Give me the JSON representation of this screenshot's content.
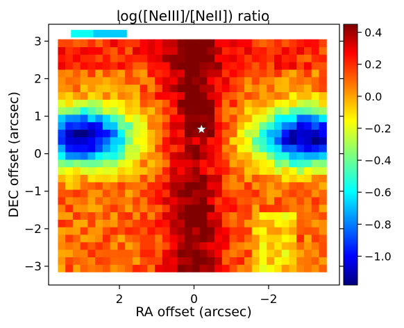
{
  "chart_data": {
    "type": "heatmap",
    "title": "log([NeIII]/[NeII]) ratio",
    "xlabel": "RA offset (arcsec)",
    "ylabel": "DEC offset (arcsec)",
    "xlim": [
      3.9,
      -3.9
    ],
    "ylim": [
      -3.5,
      3.45
    ],
    "x_ticks": [
      2,
      0,
      -2
    ],
    "x_tick_labels": [
      "2",
      "0",
      "−2"
    ],
    "y_ticks": [
      -3,
      -2,
      -1,
      0,
      1,
      2,
      3
    ],
    "y_tick_labels": [
      "−3",
      "−2",
      "−1",
      "0",
      "1",
      "2",
      "3"
    ],
    "colorbar": {
      "colormap": "jet",
      "vmin": -1.18,
      "vmax": 0.45,
      "ticks": [
        0.4,
        0.2,
        0.0,
        -0.2,
        -0.4,
        -0.6,
        -0.8,
        -1.0
      ],
      "tick_labels": [
        "0.4",
        "0.2",
        "0.0",
        "−0.2",
        "−0.4",
        "−0.6",
        "−0.8",
        "−1.0"
      ]
    },
    "marker": {
      "symbol": "star",
      "ra": -0.2,
      "dec": 0.65,
      "color": "#ffffff"
    },
    "map": {
      "ra_max": 3.55,
      "ra_min": -3.6,
      "dec_min": -3.05,
      "dec_max": 3.05,
      "cell_arcsec": 0.2,
      "description_values": "log ratio field: core (RA~0) ~0.2-0.45; two blue lobes at DEC~0.5, RA~+3 and RA~-3 with minimum ~-1.15; outer regions ~0.0-0.2"
    }
  }
}
